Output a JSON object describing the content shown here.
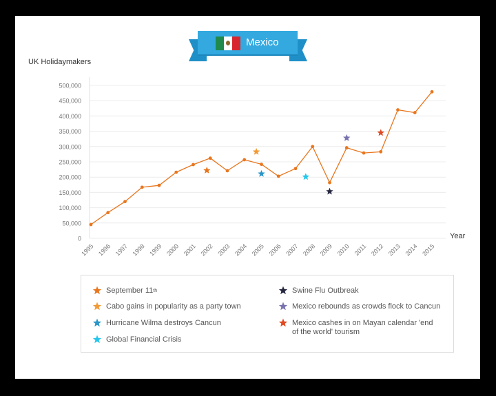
{
  "banner": {
    "title": "Mexico",
    "flag_icon": "mexico-flag-icon"
  },
  "chart_data": {
    "type": "line",
    "ylabel": "UK Holidaymakers",
    "xlabel": "Year",
    "ylim": [
      0,
      500000
    ],
    "y_ticks": [
      0,
      50000,
      100000,
      150000,
      200000,
      250000,
      300000,
      350000,
      400000,
      450000,
      500000
    ],
    "y_tick_labels": [
      "0",
      "50,000",
      "100,000",
      "150,000",
      "200,000",
      "250,000",
      "300,000",
      "350,000",
      "400,000",
      "450,000",
      "500,000"
    ],
    "x_ticks": [
      "1995",
      "1996",
      "1997",
      "1998",
      "1999",
      "2000",
      "2001",
      "2002",
      "2003",
      "2004",
      "2005",
      "2006",
      "2007",
      "2008",
      "2009",
      "2010",
      "2011",
      "2012",
      "2013",
      "2014",
      "2015"
    ],
    "grid": "horizontal",
    "line_color": "#e8761e",
    "series": [
      {
        "x": [
          1995,
          1996,
          1997,
          1998,
          1999,
          2000,
          2001,
          2002,
          2003,
          2004,
          2005,
          2006,
          2007,
          2008,
          2009,
          2010,
          2011,
          2012,
          2013,
          2014,
          2015
        ],
        "values": [
          45000,
          84000,
          120000,
          167000,
          173000,
          216000,
          241000,
          262000,
          221000,
          257000,
          242000,
          203000,
          228000,
          300000,
          182000,
          296000,
          279000,
          283000,
          420000,
          411000,
          479000
        ]
      }
    ],
    "events": [
      {
        "year": 2001.8,
        "value": 222000,
        "color": "#e8761e",
        "label": "September 11",
        "label_sup": "th"
      },
      {
        "year": 2004.7,
        "value": 283000,
        "color": "#f29a35",
        "label": "Cabo gains in popularity as a party town"
      },
      {
        "year": 2005.0,
        "value": 211000,
        "color": "#2a95c8",
        "label": "Hurricane Wilma destroys Cancun"
      },
      {
        "year": 2007.6,
        "value": 201000,
        "color": "#26c6ec",
        "label": "Global Financial Crisis"
      },
      {
        "year": 2009.0,
        "value": 153000,
        "color": "#25263f",
        "label": "Swine Flu Outbreak"
      },
      {
        "year": 2010.0,
        "value": 328000,
        "color": "#7872ae",
        "label": "Mexico rebounds as crowds flock to Cancun"
      },
      {
        "year": 2012.0,
        "value": 345000,
        "color": "#e04a23",
        "label": "Mexico cashes in on Mayan calendar 'end of the world' tourism"
      }
    ]
  }
}
